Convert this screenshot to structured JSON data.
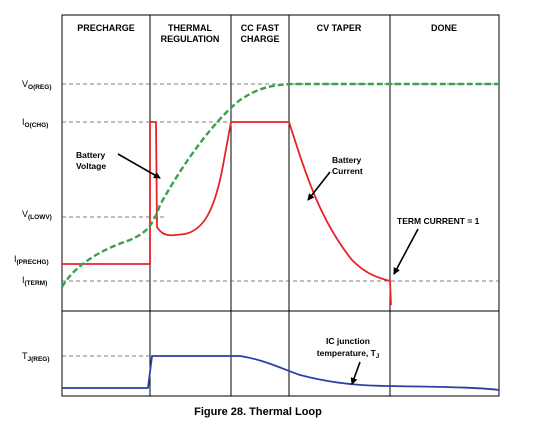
{
  "phases": [
    "PRECHARGE",
    "THERMAL REGULATION",
    "CC FAST CHARGE",
    "CV TAPER",
    "DONE"
  ],
  "phase_lines": [
    [
      "PRECHARGE"
    ],
    [
      "THERMAL",
      "REGULATION"
    ],
    [
      "CC FAST",
      "CHARGE"
    ],
    [
      "CV TAPER"
    ],
    [
      "DONE"
    ]
  ],
  "y_labels": {
    "vo_reg": {
      "main": "V",
      "sub": "O(REG)"
    },
    "io_chg": {
      "main": "I",
      "sub": "O(CHG)"
    },
    "v_lowv": {
      "main": "V",
      "sub": "(LOWV)"
    },
    "i_prechg": {
      "main": "I",
      "sub": "(PRECHG)"
    },
    "i_term": {
      "main": "I",
      "sub": "(TERM)"
    },
    "tj_reg": {
      "main": "T",
      "sub": "J(REG)"
    }
  },
  "annotations": {
    "battery_voltage": [
      "Battery",
      "Voltage"
    ],
    "battery_current": [
      "Battery",
      "Current"
    ],
    "term_current": "TERM CURRENT = 1",
    "ic_junction_line1": "IC junction",
    "ic_junction_line2_main": "temperature, T",
    "ic_junction_line2_sub": "J"
  },
  "caption": "Figure 28.  Thermal Loop",
  "colors": {
    "voltage": "#3aa04a",
    "current": "#e8222a",
    "temperature": "#2b3fa8",
    "frame": "#000000",
    "guide": "#555555"
  }
}
